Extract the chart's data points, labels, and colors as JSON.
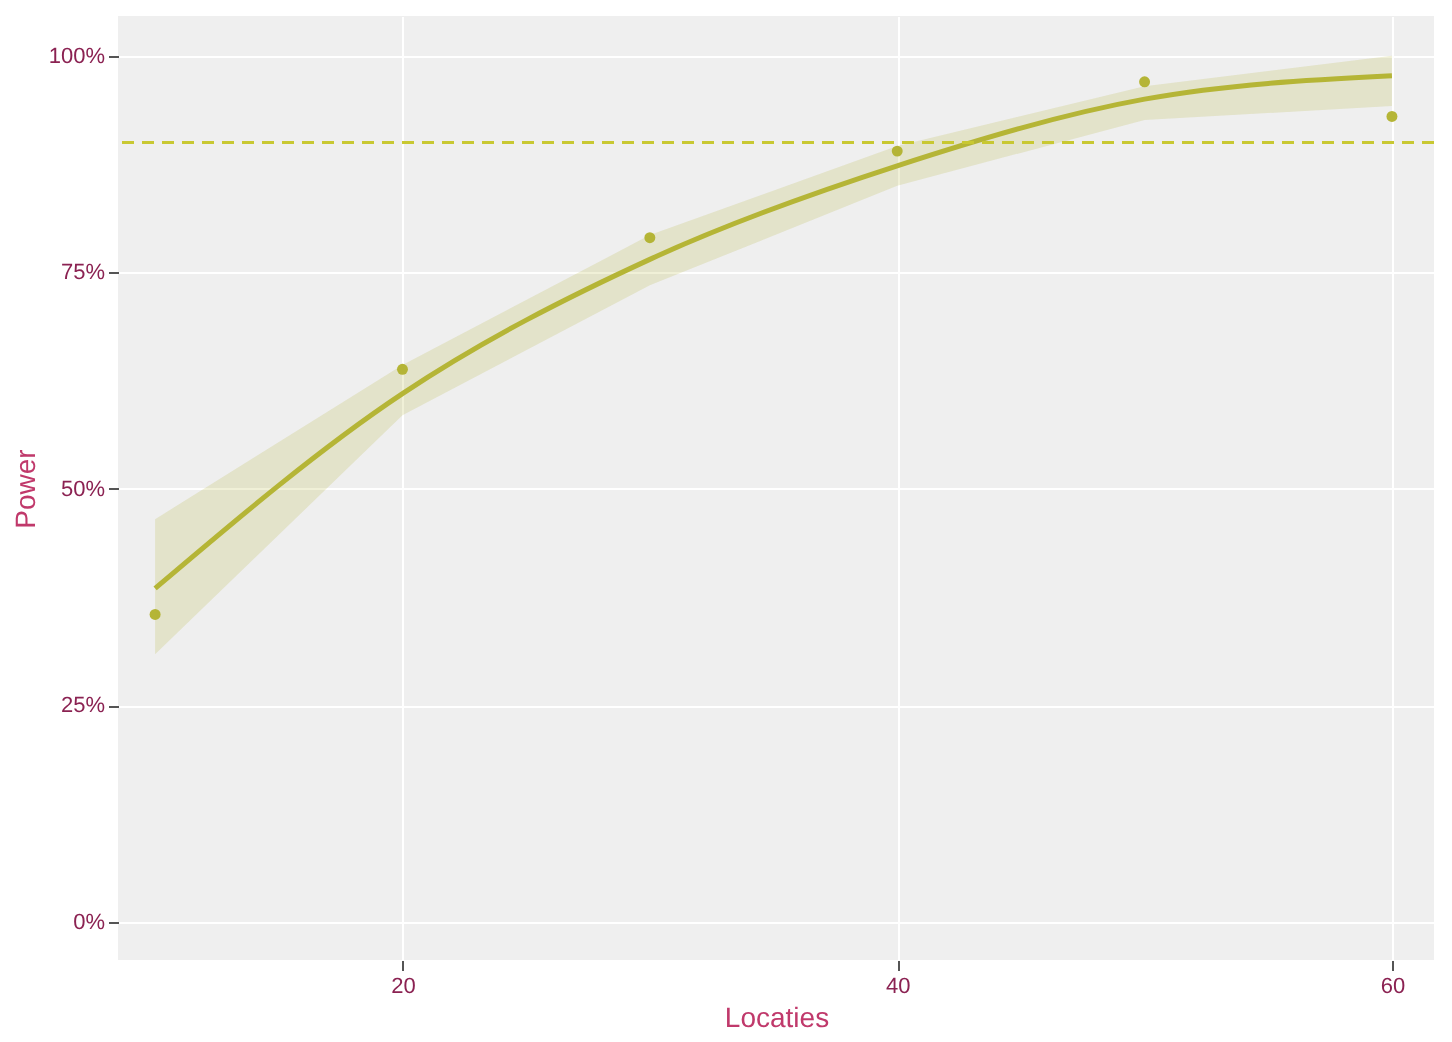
{
  "chart_data": {
    "type": "scatter",
    "xlabel": "Locaties",
    "ylabel": "Power",
    "xlim": [
      8.5,
      61.7
    ],
    "xticks": [
      20,
      40,
      60
    ],
    "ylim": [
      -4.4,
      104.6
    ],
    "yticks": [
      {
        "value": 0,
        "label": "0%"
      },
      {
        "value": 25,
        "label": "25%"
      },
      {
        "value": 50,
        "label": "50%"
      },
      {
        "value": 75,
        "label": "75%"
      },
      {
        "value": 100,
        "label": "100%"
      }
    ],
    "grid": true,
    "series": [
      {
        "color": "#b5b536",
        "marker": "circle",
        "x": [
          10,
          20,
          30,
          40,
          50,
          60
        ],
        "values": [
          35.5,
          63.8,
          79,
          89,
          97,
          93
        ]
      },
      {
        "type": "line",
        "color": "#b5b536",
        "line_style": "solid",
        "x": [
          10,
          20,
          30,
          40,
          50,
          60
        ],
        "values": [
          38.5,
          61,
          76.5,
          87.3,
          95,
          97.7
        ],
        "lower": [
          30.9,
          58.5,
          73.5,
          85,
          92.6,
          94.2
        ],
        "upper": [
          46.5,
          64.3,
          79.3,
          89.6,
          96.5,
          100
        ]
      }
    ],
    "ref_lines": [
      {
        "axis": "y",
        "value": 90,
        "color": "#c8c832",
        "line_style": "dashed"
      }
    ]
  }
}
